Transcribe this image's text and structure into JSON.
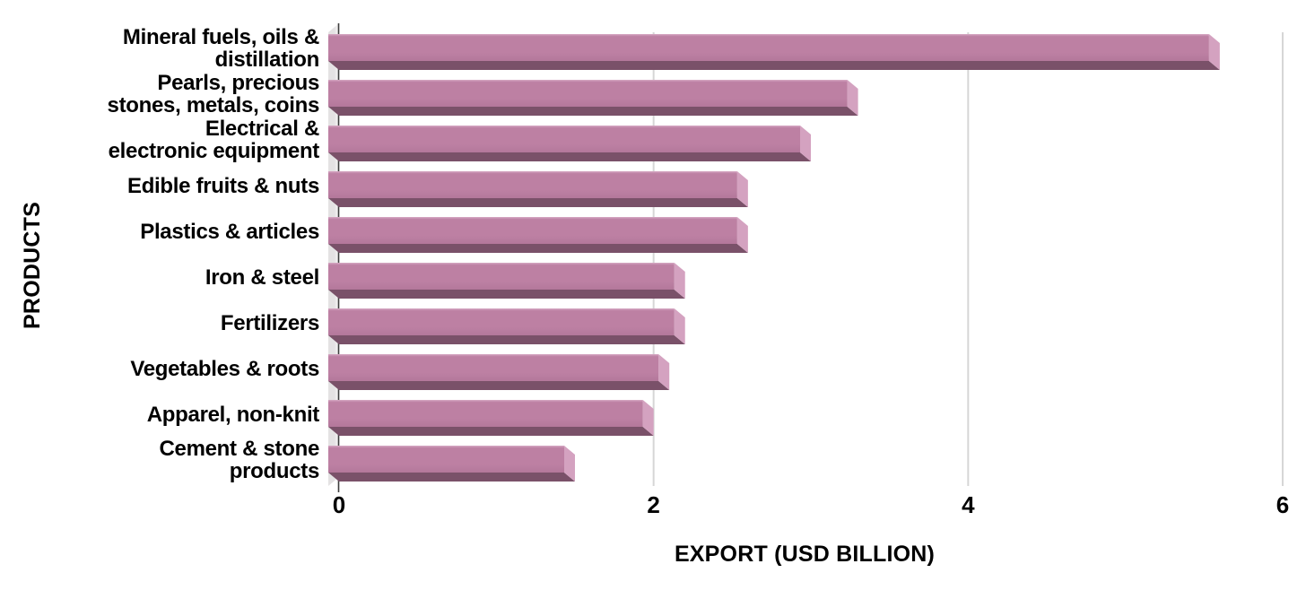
{
  "chart_data": {
    "type": "bar",
    "orientation": "horizontal",
    "style": "3d-extruded",
    "title": "",
    "xlabel": "EXPORT (USD BILLION)",
    "ylabel": "PRODUCTS",
    "xlim": [
      0,
      6
    ],
    "xticks": [
      "0",
      "2",
      "4",
      "6"
    ],
    "grid": true,
    "legend": false,
    "categories": [
      "Mineral fuels, oils &\ndistillation",
      "Pearls, precious\nstones, metals, coins",
      "Electrical &\nelectronic equipment",
      "Edible fruits & nuts",
      "Plastics & articles",
      "Iron & steel",
      "Fertilizers",
      "Vegetables & roots",
      "Apparel, non-knit",
      "Cement & stone\nproducts"
    ],
    "values": [
      5.6,
      3.3,
      3.0,
      2.6,
      2.6,
      2.2,
      2.2,
      2.1,
      2.0,
      1.5
    ],
    "colors": {
      "bar_face": "#bd80a3",
      "bar_face_highlight": "#d7a9c4",
      "bar_face_dark": "#b4789b",
      "bar_end": "#d4a2c0",
      "bar_bottom": "#7a5169",
      "wall": "#e4e2e3",
      "wall_highlight": "#fbfafa",
      "gridline": "#d6d6d6",
      "axis_line": "#3d3d3d",
      "text": "#000000",
      "background": "#ffffff"
    }
  }
}
